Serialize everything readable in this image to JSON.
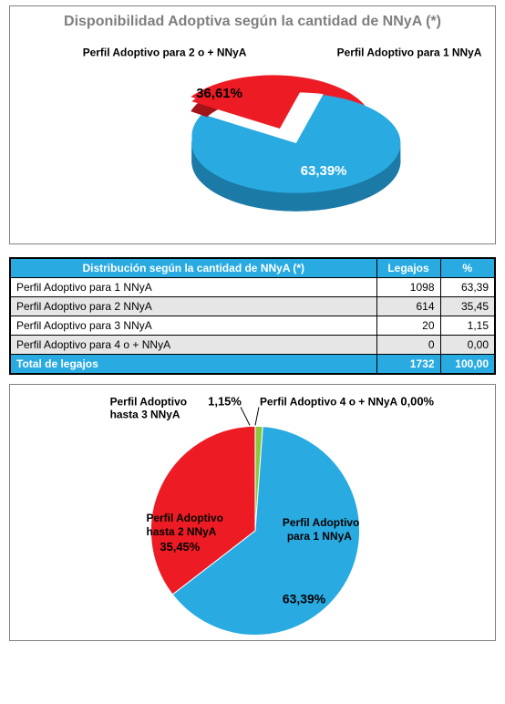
{
  "chart1": {
    "title": "Disponibilidad Adoptiva según la cantidad de NNyA (*)",
    "title_color": "#7f7f7f",
    "title_fontsize": 14,
    "background": "#ffffff",
    "type": "pie3d",
    "slices": [
      {
        "label": "Perfil Adoptivo  para 1 NNyA",
        "pct_text": "63,39%",
        "value": 63.39,
        "color": "#29abe2",
        "side_color": "#1b7aa6"
      },
      {
        "label": "Perfil Adoptivo  para 2 o + NNyA",
        "pct_text": "36,61%",
        "value": 36.61,
        "color": "#ed1c24",
        "side_color": "#a3131a",
        "exploded": true
      }
    ],
    "label_fontsize": 12,
    "pct_fontsize": 14
  },
  "table": {
    "header_bg": "#29abe2",
    "header_fg": "#ffffff",
    "row_alt_bg": "#e6e6e6",
    "border_color": "#000000",
    "title": "Distribución según la cantidad de NNyA (*)",
    "columns": [
      "",
      "Legajos",
      "%"
    ],
    "rows": [
      {
        "label": "Perfil Adoptivo para 1  NNyA",
        "legajos": "1098",
        "pct": "63,39"
      },
      {
        "label": "Perfil Adoptivo para 2 NNyA",
        "legajos": "614",
        "pct": "35,45"
      },
      {
        "label": "Perfil Adoptivo para 3 NNyA",
        "legajos": "20",
        "pct": "1,15"
      },
      {
        "label": "Perfil Adoptivo para 4 o + NNyA",
        "legajos": "0",
        "pct": "0,00"
      }
    ],
    "total": {
      "label": "Total de legajos",
      "legajos": "1732",
      "pct": "100,00"
    }
  },
  "chart2": {
    "type": "pie",
    "background": "#ffffff",
    "slices": [
      {
        "label": "Perfil Adoptivo para 1 NNyA",
        "pct_text": "63,39%",
        "value": 63.39,
        "color": "#29abe2"
      },
      {
        "label": "Perfil Adoptivo hasta 2 NNyA",
        "pct_text": "35,45%",
        "value": 35.45,
        "color": "#ed1c24"
      },
      {
        "label": "Perfil Adoptivo hasta 3 NNyA",
        "pct_text": "1,15%",
        "value": 1.15,
        "color": "#8cc63f"
      },
      {
        "label": "Perfil Adoptivo  4 o + NNyA",
        "pct_text": "0,00%",
        "value": 0.0,
        "color": "#662d91"
      }
    ],
    "label_fontsize": 12,
    "pct_fontsize": 13
  }
}
